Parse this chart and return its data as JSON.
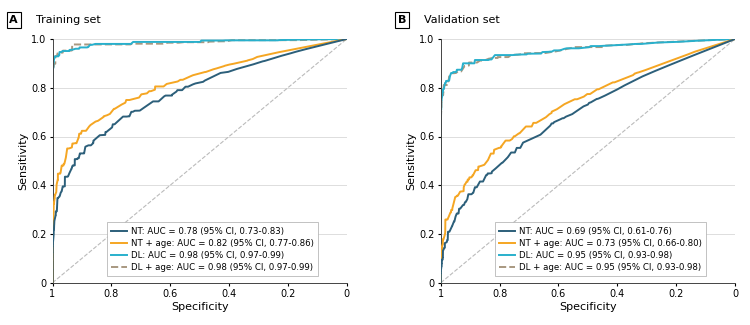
{
  "panel_A": {
    "title": "Training set",
    "label": "A",
    "legends": [
      "NT: AUC = 0.78 (95% CI, 0.73-0.83)",
      "NT + age: AUC = 0.82 (95% CI, 0.77-0.86)",
      "DL: AUC = 0.98 (95% CI, 0.97-0.99)",
      "DL + age: AUC = 0.98 (95% CI, 0.97-0.99)"
    ],
    "aucs": [
      0.78,
      0.82,
      0.98,
      0.98
    ],
    "seeds": [
      101,
      202,
      303,
      404
    ],
    "colors": [
      "#2c5f7a",
      "#f5a623",
      "#29b0cc",
      "#a89880"
    ],
    "linestyles": [
      "-",
      "-",
      "-",
      "--"
    ],
    "linewidths": [
      1.4,
      1.4,
      1.4,
      1.4
    ]
  },
  "panel_B": {
    "title": "Validation set",
    "label": "B",
    "legends": [
      "NT: AUC = 0.69 (95% CI, 0.61-0.76)",
      "NT + age: AUC = 0.73 (95% CI, 0.66-0.80)",
      "DL: AUC = 0.95 (95% CI, 0.93-0.98)",
      "DL + age: AUC = 0.95 (95% CI, 0.93-0.98)"
    ],
    "aucs": [
      0.69,
      0.73,
      0.95,
      0.95
    ],
    "seeds": [
      505,
      606,
      707,
      808
    ],
    "colors": [
      "#2c5f7a",
      "#f5a623",
      "#29b0cc",
      "#a89880"
    ],
    "linestyles": [
      "-",
      "-",
      "-",
      "--"
    ],
    "linewidths": [
      1.4,
      1.4,
      1.4,
      1.4
    ]
  },
  "bg_color": "#ffffff",
  "grid_color": "#d0d0d0",
  "diag_color": "#bbbbbb",
  "tick_label_size": 7,
  "axis_label_size": 8,
  "legend_fontsize": 6.2,
  "title_fontsize": 8,
  "panel_label_fontsize": 8
}
